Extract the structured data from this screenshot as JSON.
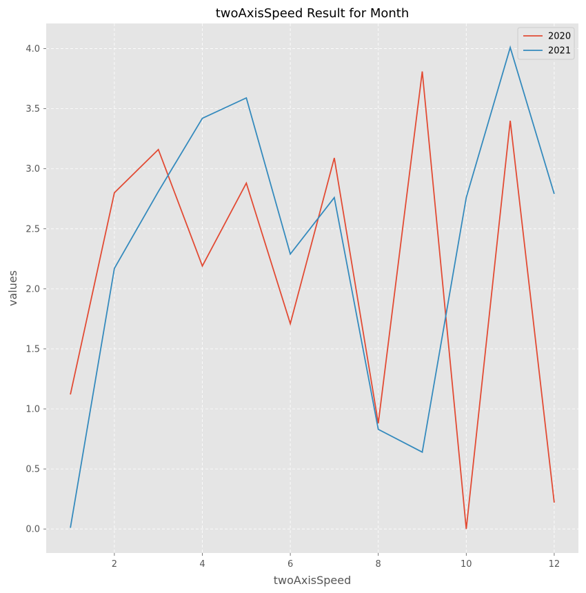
{
  "chart_data": {
    "type": "line",
    "title": "twoAxisSpeed Result for Month",
    "xlabel": "twoAxisSpeed",
    "ylabel": "values",
    "x": [
      1,
      2,
      3,
      4,
      5,
      6,
      7,
      8,
      9,
      10,
      11,
      12
    ],
    "xlim": [
      0.45,
      12.55
    ],
    "ylim": [
      -0.2,
      4.21
    ],
    "xticks": [
      2,
      4,
      6,
      8,
      10,
      12
    ],
    "yticks": [
      0.0,
      0.5,
      1.0,
      1.5,
      2.0,
      2.5,
      3.0,
      3.5,
      4.0
    ],
    "grid": true,
    "legend_position": "top-right",
    "background_color": "#e5e5e5",
    "series": [
      {
        "name": "2020",
        "color": "#e24a33",
        "values": [
          1.12,
          2.8,
          3.16,
          2.19,
          2.88,
          1.71,
          3.09,
          0.88,
          3.81,
          0.0,
          3.4,
          0.22
        ]
      },
      {
        "name": "2021",
        "color": "#348abd",
        "values": [
          0.01,
          2.17,
          2.81,
          3.42,
          3.59,
          2.29,
          2.76,
          0.83,
          0.64,
          2.76,
          4.01,
          2.79
        ]
      }
    ]
  }
}
